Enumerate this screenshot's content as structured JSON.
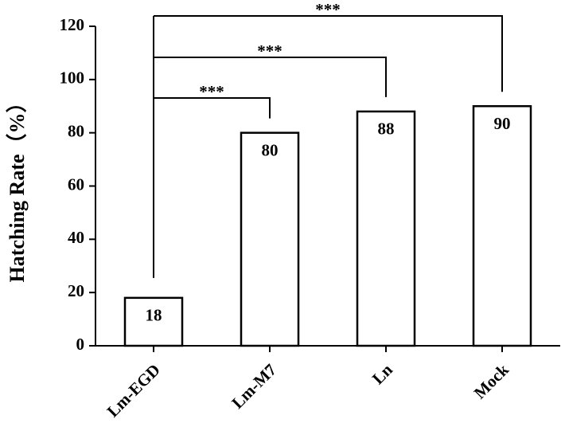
{
  "chart_data": {
    "type": "bar",
    "y_label": "Hatching Rate（%）",
    "categories": [
      "Lm-EGD",
      "Lm-M7",
      "Ln",
      "Mock"
    ],
    "values": [
      18,
      80,
      88,
      90
    ],
    "color": "#ffffff",
    "ylim": [
      0,
      120
    ],
    "yticks": [
      0,
      20,
      40,
      60,
      80,
      100,
      120
    ],
    "annotations": [
      {
        "text": "***",
        "from": "Lm-EGD",
        "to": "Lm-M7"
      },
      {
        "text": "***",
        "from": "Lm-EGD",
        "to": "Ln"
      },
      {
        "text": "***",
        "from": "Lm-EGD",
        "to": "Mock"
      }
    ]
  }
}
